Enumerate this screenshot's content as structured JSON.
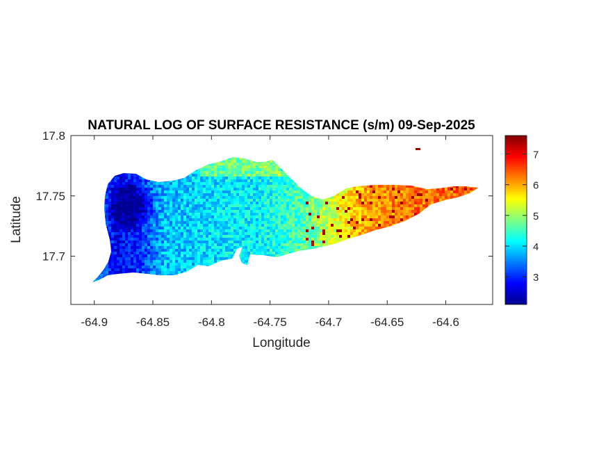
{
  "chart_data": {
    "type": "heatmap",
    "title": "NATURAL LOG OF SURFACE RESISTANCE (s/m) 09-Sep-2025",
    "xlabel": "Longitude",
    "ylabel": "Latitude",
    "xlim": [
      -64.92,
      -64.56
    ],
    "ylim": [
      17.66,
      17.8
    ],
    "xticks": [
      -64.9,
      -64.85,
      -64.8,
      -64.75,
      -64.7,
      -64.65,
      -64.6
    ],
    "xtick_labels": [
      "-64.9",
      "-64.85",
      "-64.8",
      "-64.75",
      "-64.7",
      "-64.65",
      "-64.6"
    ],
    "yticks": [
      17.7,
      17.75,
      17.8
    ],
    "ytick_labels": [
      "17.7",
      "17.75",
      "17.8"
    ],
    "colormap": "jet",
    "colorbar": {
      "range": [
        2.1,
        7.6
      ],
      "ticks": [
        3,
        4,
        5,
        6,
        7
      ],
      "tick_labels": [
        "3",
        "4",
        "5",
        "6",
        "7"
      ]
    },
    "grid": false,
    "values_profile_west_to_east": [
      {
        "lon": -64.9,
        "value": 3.6
      },
      {
        "lon": -64.88,
        "value": 2.7
      },
      {
        "lon": -64.86,
        "value": 3.1
      },
      {
        "lon": -64.84,
        "value": 3.8
      },
      {
        "lon": -64.8,
        "value": 4.0
      },
      {
        "lon": -64.76,
        "value": 4.1
      },
      {
        "lon": -64.72,
        "value": 4.6
      },
      {
        "lon": -64.7,
        "value": 5.2
      },
      {
        "lon": -64.67,
        "value": 6.0
      },
      {
        "lon": -64.63,
        "value": 6.3
      },
      {
        "lon": -64.58,
        "value": 6.4
      }
    ]
  }
}
